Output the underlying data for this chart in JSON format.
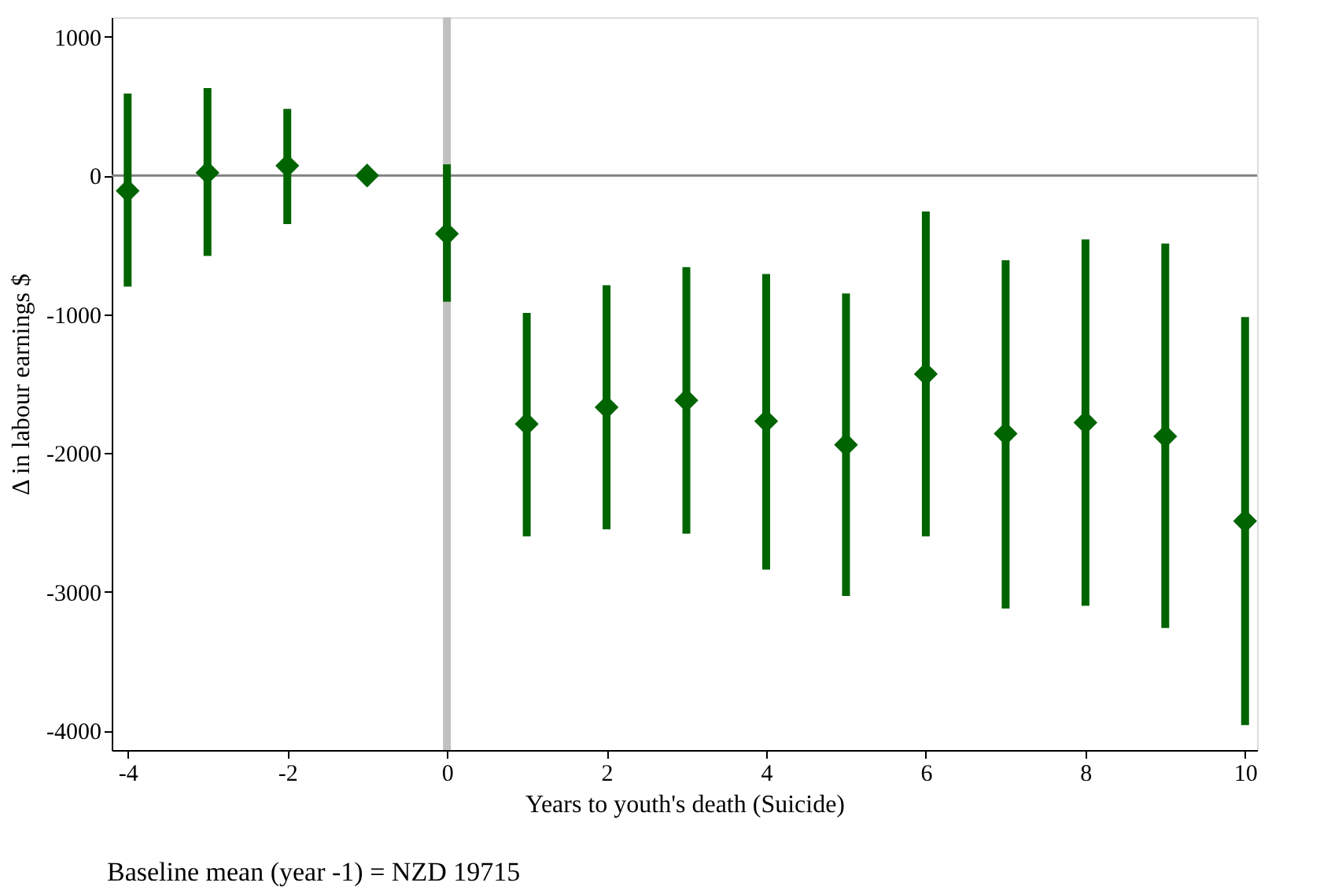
{
  "chart_data": {
    "type": "scatter",
    "xlabel": "Years to youth's death (Suicide)",
    "ylabel": "Δ in labour earnings $",
    "x": [
      -4,
      -3,
      -2,
      -1,
      0,
      1,
      2,
      3,
      4,
      5,
      6,
      7,
      8,
      9,
      10
    ],
    "series": [
      {
        "color": "#006400",
        "values": [
          -110,
          20,
          70,
          0,
          -420,
          -1790,
          -1670,
          -1620,
          -1770,
          -1940,
          -1430,
          -1860,
          -1780,
          -1880,
          -2490
        ],
        "errors": [
          [
            -800,
            590
          ],
          [
            -580,
            630
          ],
          [
            -350,
            480
          ],
          null,
          [
            -910,
            80
          ],
          [
            -2600,
            -990
          ],
          [
            -2550,
            -790
          ],
          [
            -2580,
            -660
          ],
          [
            -2840,
            -710
          ],
          [
            -3030,
            -850
          ],
          [
            -2600,
            -260
          ],
          [
            -3120,
            -610
          ],
          [
            -3100,
            -460
          ],
          [
            -3260,
            -490
          ],
          [
            -3960,
            -1020
          ]
        ]
      }
    ],
    "marker": "diamond",
    "xlim": [
      -4.2,
      10.15
    ],
    "ylim": [
      -4140,
      1140
    ],
    "xticks": [
      -4,
      -2,
      0,
      2,
      4,
      6,
      8,
      10
    ],
    "yticks": [
      -4000,
      -3000,
      -2000,
      -1000,
      0,
      1000
    ],
    "ref_lines": [
      {
        "axis": "y",
        "value": 0,
        "color": "#808080"
      },
      {
        "axis": "x",
        "value": 0,
        "color": "#c0c0c0"
      }
    ],
    "grid": false,
    "annotations": [
      "Baseline mean (year -1) = NZD 19715"
    ]
  }
}
